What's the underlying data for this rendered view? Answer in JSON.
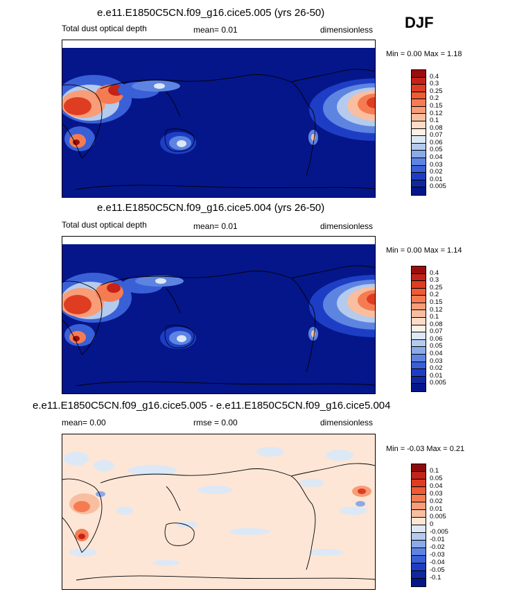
{
  "season": "DJF",
  "panels": [
    {
      "title": "e.e11.E1850C5CN.f09_g16.cice5.005 (yrs 26-50)",
      "left": "Total dust optical depth",
      "middle": "mean=   0.01",
      "right": "dimensionless",
      "minmax": "Min =   0.00 Max =   1.18",
      "background": "#05168a",
      "colorbar": {
        "labels": [
          "0.4",
          "0.3",
          "0.25",
          "0.2",
          "0.15",
          "0.12",
          "0.1",
          "0.08",
          "0.07",
          "0.06",
          "0.05",
          "0.04",
          "0.03",
          "0.02",
          "0.01",
          "0.005"
        ],
        "colors": [
          "#9b0d0d",
          "#c42318",
          "#de3d22",
          "#ee5b34",
          "#f57c52",
          "#f89d78",
          "#f9bea0",
          "#fbdcc8",
          "#fdf0e4",
          "#dce8f6",
          "#b4cbee",
          "#8aaae8",
          "#5e84e2",
          "#3a60d8",
          "#1d3ec4",
          "#10289e",
          "#05168a"
        ]
      }
    },
    {
      "title": "e.e11.E1850C5CN.f09_g16.cice5.004 (yrs 26-50)",
      "left": "Total dust optical depth",
      "middle": "mean=   0.01",
      "right": "dimensionless",
      "minmax": "Min =   0.00 Max =   1.14",
      "background": "#05168a",
      "colorbar": {
        "labels": [
          "0.4",
          "0.3",
          "0.25",
          "0.2",
          "0.15",
          "0.12",
          "0.1",
          "0.08",
          "0.07",
          "0.06",
          "0.05",
          "0.04",
          "0.03",
          "0.02",
          "0.01",
          "0.005"
        ],
        "colors": [
          "#9b0d0d",
          "#c42318",
          "#de3d22",
          "#ee5b34",
          "#f57c52",
          "#f89d78",
          "#f9bea0",
          "#fbdcc8",
          "#fdf0e4",
          "#dce8f6",
          "#b4cbee",
          "#8aaae8",
          "#5e84e2",
          "#3a60d8",
          "#1d3ec4",
          "#10289e",
          "#05168a"
        ]
      }
    },
    {
      "title": "e.e11.E1850C5CN.f09_g16.cice5.005 - e.e11.E1850C5CN.f09_g16.cice5.004",
      "left": "mean=    0.00",
      "middle": "rmse =   0.00",
      "right": "dimensionless",
      "minmax": "Min =  -0.03 Max =   0.21",
      "background": "#fde6d6",
      "colorbar": {
        "labels": [
          "0.1",
          "0.05",
          "0.04",
          "0.03",
          "0.02",
          "0.01",
          "0.005",
          "0",
          "-0.005",
          "-0.01",
          "-0.02",
          "-0.03",
          "-0.04",
          "-0.05",
          "-0.1"
        ],
        "colors": [
          "#8e0b0b",
          "#c42318",
          "#de3d22",
          "#ee5b34",
          "#f57c52",
          "#f89d78",
          "#f9bea0",
          "#fde6d6",
          "#dce8f6",
          "#b4cbee",
          "#8aaae8",
          "#5e84e2",
          "#3a60d8",
          "#1d3ec4",
          "#10289e",
          "#05168a"
        ]
      }
    }
  ]
}
